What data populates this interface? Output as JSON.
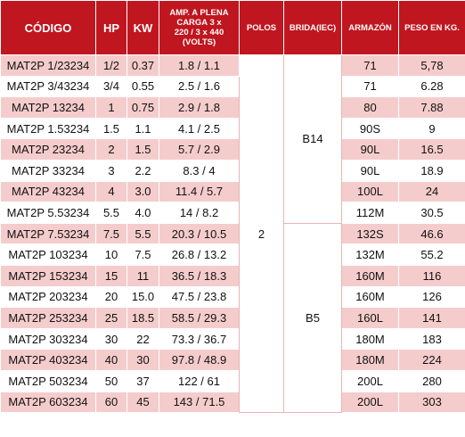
{
  "header": {
    "codigo": "CÓDIGO",
    "hp": "HP",
    "kw": "KW",
    "amp_line1": "AMP. A PLENA",
    "amp_line2": "CARGA 3 x",
    "amp_line3": "220 / 3 x 440",
    "amp_line4": "(VOLTS)",
    "polos": "POLOS",
    "brida": "BRIDA(IEC)",
    "armazon": "ARMAZÓN",
    "peso": "PESO EN KG."
  },
  "merged": {
    "polos": "2",
    "brida_b14": "B14",
    "brida_b5": "B5"
  },
  "rows": [
    {
      "codigo": "MAT2P 1/23234",
      "hp": "1/2",
      "kw": "0.37",
      "amp": "1.8 / 1.1",
      "armazon": "71",
      "peso": "5,78"
    },
    {
      "codigo": "MAT2P 3/43234",
      "hp": "3/4",
      "kw": "0.55",
      "amp": "2.5 / 1.6",
      "armazon": "71",
      "peso": "6.28"
    },
    {
      "codigo": "MAT2P 13234",
      "hp": "1",
      "kw": "0.75",
      "amp": "2.9 / 1.8",
      "armazon": "80",
      "peso": "7.88"
    },
    {
      "codigo": "MAT2P 1.53234",
      "hp": "1.5",
      "kw": "1.1",
      "amp": "4.1 / 2.5",
      "armazon": "90S",
      "peso": "9"
    },
    {
      "codigo": "MAT2P 23234",
      "hp": "2",
      "kw": "1.5",
      "amp": "5.7 / 2.9",
      "armazon": "90L",
      "peso": "16.5"
    },
    {
      "codigo": "MAT2P 33234",
      "hp": "3",
      "kw": "2.2",
      "amp": "8.3 / 4",
      "armazon": "90L",
      "peso": "18.9"
    },
    {
      "codigo": "MAT2P 43234",
      "hp": "4",
      "kw": "3.0",
      "amp": "11.4 / 5.7",
      "armazon": "100L",
      "peso": "24"
    },
    {
      "codigo": "MAT2P 5.53234",
      "hp": "5.5",
      "kw": "4.0",
      "amp": "14 / 8.2",
      "armazon": "112M",
      "peso": "30.5"
    },
    {
      "codigo": "MAT2P 7.53234",
      "hp": "7.5",
      "kw": "5.5",
      "amp": "20.3 / 10.5",
      "armazon": "132S",
      "peso": "46.6"
    },
    {
      "codigo": "MAT2P 103234",
      "hp": "10",
      "kw": "7.5",
      "amp": "26.8 / 13.2",
      "armazon": "132M",
      "peso": "55.2"
    },
    {
      "codigo": "MAT2P 153234",
      "hp": "15",
      "kw": "11",
      "amp": "36.5 / 18.3",
      "armazon": "160M",
      "peso": "116"
    },
    {
      "codigo": "MAT2P 203234",
      "hp": "20",
      "kw": "15.0",
      "amp": "47.5 / 23.8",
      "armazon": "160M",
      "peso": "126"
    },
    {
      "codigo": "MAT2P 253234",
      "hp": "25",
      "kw": "18.5",
      "amp": "58.5 / 29.3",
      "armazon": "160L",
      "peso": "141"
    },
    {
      "codigo": "MAT2P 303234",
      "hp": "30",
      "kw": "22",
      "amp": "73.3 / 36.7",
      "armazon": "180M",
      "peso": "183"
    },
    {
      "codigo": "MAT2P 403234",
      "hp": "40",
      "kw": "30",
      "amp": "97.8 / 48.9",
      "armazon": "180M",
      "peso": "224"
    },
    {
      "codigo": "MAT2P 503234",
      "hp": "50",
      "kw": "37",
      "amp": "122 / 61",
      "armazon": "200L",
      "peso": "280"
    },
    {
      "codigo": "MAT2P 603234",
      "hp": "60",
      "kw": "45",
      "amp": "143 / 71.5",
      "armazon": "200L",
      "peso": "303"
    }
  ]
}
